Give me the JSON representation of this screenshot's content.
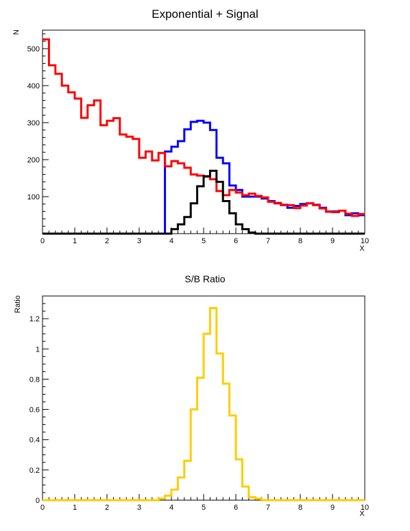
{
  "chart_data": [
    {
      "type": "line",
      "style": "step-histogram",
      "title": "Exponential + Signal",
      "xlabel": "X",
      "ylabel": "N",
      "xlim": [
        0,
        10
      ],
      "ylim": [
        0,
        550
      ],
      "xticks": [
        "0",
        "1",
        "2",
        "3",
        "4",
        "5",
        "6",
        "7",
        "8",
        "9",
        "10"
      ],
      "yticks": [
        {
          "value": 100,
          "label": "100"
        },
        {
          "value": 200,
          "label": "200"
        },
        {
          "value": 300,
          "label": "300"
        },
        {
          "value": 400,
          "label": "400"
        },
        {
          "value": 500,
          "label": "500"
        }
      ],
      "grid": false,
      "bin_width": 0.2,
      "x": [
        0.1,
        0.3,
        0.5,
        0.7,
        0.9,
        1.1,
        1.3,
        1.5,
        1.7,
        1.9,
        2.1,
        2.3,
        2.5,
        2.7,
        2.9,
        3.1,
        3.3,
        3.5,
        3.7,
        3.9,
        4.1,
        4.3,
        4.5,
        4.7,
        4.9,
        5.1,
        5.3,
        5.5,
        5.7,
        5.9,
        6.1,
        6.3,
        6.5,
        6.7,
        6.9,
        7.1,
        7.3,
        7.5,
        7.7,
        7.9,
        8.1,
        8.3,
        8.5,
        8.7,
        8.9,
        9.1,
        9.3,
        9.5,
        9.7,
        9.9
      ],
      "series": [
        {
          "color": "#0000ff",
          "values": [
            0,
            0,
            0,
            0,
            0,
            0,
            0,
            0,
            0,
            0,
            0,
            0,
            0,
            0,
            0,
            0,
            0,
            0,
            0,
            222,
            235,
            250,
            282,
            302,
            305,
            300,
            280,
            205,
            190,
            130,
            118,
            100,
            100,
            100,
            95,
            88,
            82,
            78,
            70,
            75,
            80,
            82,
            78,
            70,
            60,
            60,
            62,
            50,
            55,
            50
          ]
        },
        {
          "color": "#ff0000",
          "values": [
            525,
            455,
            432,
            400,
            382,
            365,
            313,
            347,
            360,
            293,
            305,
            312,
            268,
            262,
            256,
            205,
            222,
            198,
            218,
            182,
            196,
            190,
            178,
            160,
            157,
            154,
            147,
            115,
            104,
            118,
            111,
            104,
            108,
            102,
            98,
            86,
            83,
            77,
            77,
            69,
            76,
            82,
            77,
            68,
            59,
            58,
            62,
            54,
            48,
            53
          ]
        },
        {
          "color": "#000000",
          "values": [
            0,
            0,
            0,
            0,
            0,
            0,
            0,
            0,
            0,
            0,
            0,
            0,
            0,
            0,
            0,
            0,
            0,
            0,
            0,
            0,
            12,
            25,
            45,
            82,
            128,
            155,
            170,
            140,
            88,
            55,
            25,
            12,
            3,
            0,
            0,
            0,
            0,
            0,
            0,
            0,
            0,
            0,
            0,
            0,
            0,
            0,
            0,
            0,
            0,
            0
          ]
        }
      ]
    },
    {
      "type": "line",
      "style": "step-histogram",
      "title": "S/B Ratio",
      "xlabel": "X",
      "ylabel": "Ratio",
      "xlim": [
        0,
        10
      ],
      "ylim": [
        0,
        1.35
      ],
      "xticks": [
        "0",
        "1",
        "2",
        "3",
        "4",
        "5",
        "6",
        "7",
        "8",
        "9",
        "10"
      ],
      "yticks": [
        {
          "value": 0,
          "label": "0"
        },
        {
          "value": 0.2,
          "label": "0.2"
        },
        {
          "value": 0.4,
          "label": "0.4"
        },
        {
          "value": 0.6,
          "label": "0.6"
        },
        {
          "value": 0.8,
          "label": "0.8"
        },
        {
          "value": 1.0,
          "label": "1"
        },
        {
          "value": 1.2,
          "label": "1.2"
        }
      ],
      "grid": false,
      "bin_width": 0.2,
      "x": [
        0.1,
        0.3,
        0.5,
        0.7,
        0.9,
        1.1,
        1.3,
        1.5,
        1.7,
        1.9,
        2.1,
        2.3,
        2.5,
        2.7,
        2.9,
        3.1,
        3.3,
        3.5,
        3.7,
        3.9,
        4.1,
        4.3,
        4.5,
        4.7,
        4.9,
        5.1,
        5.3,
        5.5,
        5.7,
        5.9,
        6.1,
        6.3,
        6.5,
        6.7,
        6.9,
        7.1,
        7.3,
        7.5,
        7.7,
        7.9,
        8.1,
        8.3,
        8.5,
        8.7,
        8.9,
        9.1,
        9.3,
        9.5,
        9.7,
        9.9
      ],
      "series": [
        {
          "color": "#ffcc00",
          "values": [
            0,
            0,
            0,
            0,
            0,
            0,
            0,
            0,
            0,
            0,
            0,
            0,
            0,
            0,
            0,
            0,
            0,
            0,
            0.01,
            0.03,
            0.07,
            0.15,
            0.26,
            0.6,
            0.81,
            1.1,
            1.27,
            0.97,
            0.77,
            0.56,
            0.27,
            0.09,
            0.02,
            0.01,
            0,
            0,
            0,
            0,
            0,
            0,
            0,
            0,
            0,
            0,
            0,
            0,
            0,
            0,
            0,
            0
          ]
        }
      ]
    }
  ]
}
